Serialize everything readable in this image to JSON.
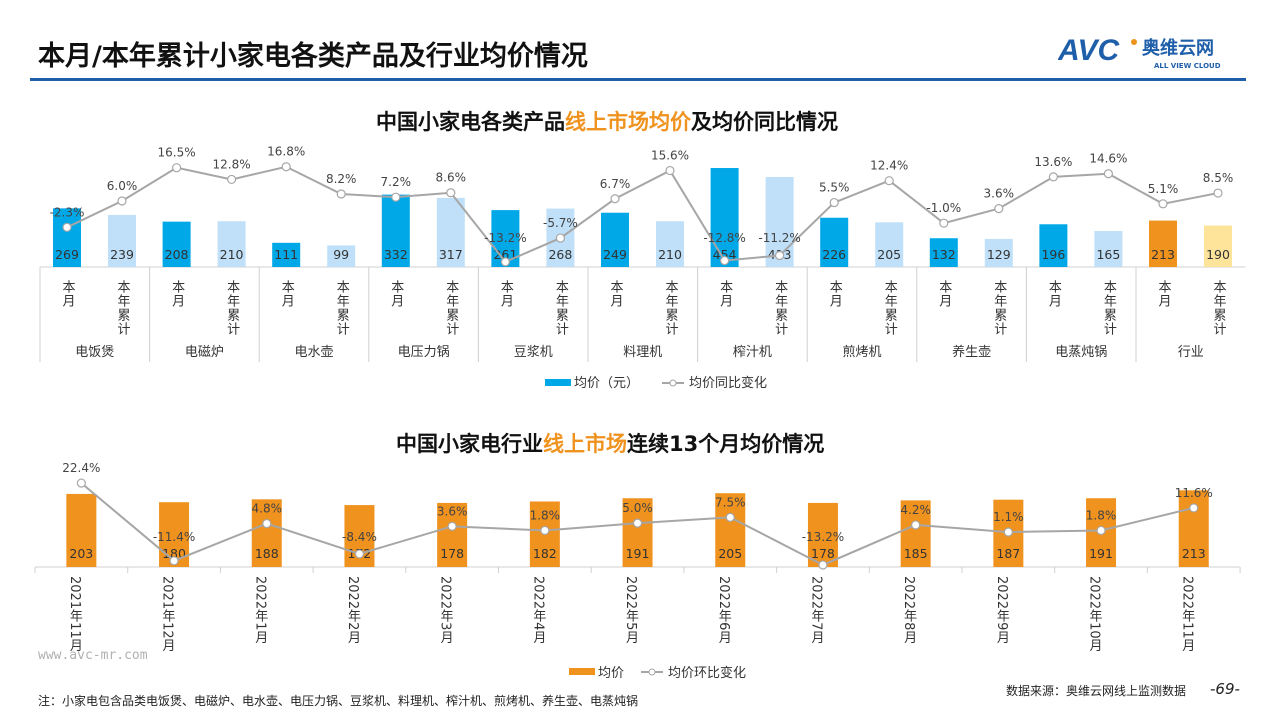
{
  "header": {
    "title": "本月/本年累计小家电各类产品及行业均价情况",
    "logo_text": "AVC",
    "logo_cn": "奥维云网",
    "logo_en": "ALL VIEW CLOUD"
  },
  "colors": {
    "month": "#00a8e8",
    "ytd": "#bfe0f8",
    "industry_month": "#f0921e",
    "industry_ytd": "#fde49a",
    "line": "#a6a6a6",
    "accent": "#f0921e",
    "brand": "#1f5faa"
  },
  "chart_data": [
    {
      "type": "bar",
      "title_parts": [
        "中国小家电各类产品",
        "线上市场均价",
        "及均价同比情况"
      ],
      "categories": [
        "电饭煲",
        "电磁炉",
        "电水壶",
        "电压力锅",
        "豆浆机",
        "料理机",
        "榨汁机",
        "煎烤机",
        "养生壶",
        "电蒸炖锅",
        "行业"
      ],
      "sub_labels": [
        "本月",
        "本年累计"
      ],
      "series": [
        {
          "name": "均价（元）",
          "type": "bar",
          "values": [
            [
              269,
              239
            ],
            [
              208,
              210
            ],
            [
              111,
              99
            ],
            [
              332,
              317
            ],
            [
              261,
              268
            ],
            [
              249,
              210
            ],
            [
              454,
              413
            ],
            [
              226,
              205
            ],
            [
              132,
              129
            ],
            [
              196,
              165
            ],
            [
              213,
              190
            ]
          ]
        },
        {
          "name": "均价同比变化",
          "type": "line",
          "unit": "%",
          "values": [
            [
              -2.3,
              6.0
            ],
            [
              16.5,
              12.8
            ],
            [
              16.8,
              8.2
            ],
            [
              7.2,
              8.6
            ],
            [
              -13.2,
              -5.7
            ],
            [
              6.7,
              15.6
            ],
            [
              -12.8,
              -11.2
            ],
            [
              5.5,
              12.4
            ],
            [
              -1.0,
              3.6
            ],
            [
              13.6,
              14.6
            ],
            [
              5.1,
              8.5
            ]
          ]
        }
      ],
      "legend": [
        "均价（元）",
        "均价同比变化"
      ],
      "legend_position": "bottom"
    },
    {
      "type": "bar",
      "title_parts": [
        "中国小家电行业",
        "线上市场",
        "连续13个月均价情况"
      ],
      "categories": [
        "2021年11月",
        "2021年12月",
        "2022年1月",
        "2022年2月",
        "2022年3月",
        "2022年4月",
        "2022年5月",
        "2022年6月",
        "2022年7月",
        "2022年8月",
        "2022年9月",
        "2022年10月",
        "2022年11月"
      ],
      "series": [
        {
          "name": "均价",
          "type": "bar",
          "values": [
            203,
            180,
            188,
            172,
            178,
            182,
            191,
            205,
            178,
            185,
            187,
            191,
            213
          ]
        },
        {
          "name": "均价环比变化",
          "type": "line",
          "unit": "%",
          "values": [
            22.4,
            -11.4,
            4.8,
            -8.4,
            3.6,
            1.8,
            5.0,
            7.5,
            -13.2,
            4.2,
            1.1,
            1.8,
            11.6
          ]
        }
      ],
      "legend": [
        "均价",
        "均价环比变化"
      ],
      "legend_position": "bottom"
    }
  ],
  "footer": {
    "site": "www.avc-mr.com",
    "note": "注：小家电包含品类电饭煲、电磁炉、电水壶、电压力锅、豆浆机、料理机、榨汁机、煎烤机、养生壶、电蒸炖锅",
    "source": "数据来源：奥维云网线上监测数据",
    "page": "-69-"
  }
}
